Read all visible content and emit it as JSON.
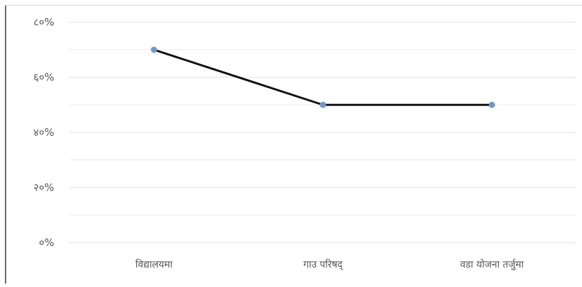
{
  "chart_data": {
    "type": "line",
    "title": "",
    "xlabel": "",
    "ylabel": "",
    "categories": [
      "विद्यालयमा",
      "गाउ परिषद्",
      "वडा योजना तर्जुमा"
    ],
    "series": [
      {
        "values": [
          70,
          50,
          50
        ]
      }
    ],
    "ylim": [
      0,
      80
    ],
    "yticks": [
      0,
      20,
      40,
      60,
      80
    ],
    "ytick_labels": [
      "०%",
      "२०%",
      "४०%",
      "६०%",
      "८०%"
    ],
    "grid": true,
    "legend": "none",
    "colors": {
      "line": "#111111",
      "marker": "#6f98c9",
      "grid": "#e6e6e6",
      "tick_text": "#555555"
    }
  }
}
